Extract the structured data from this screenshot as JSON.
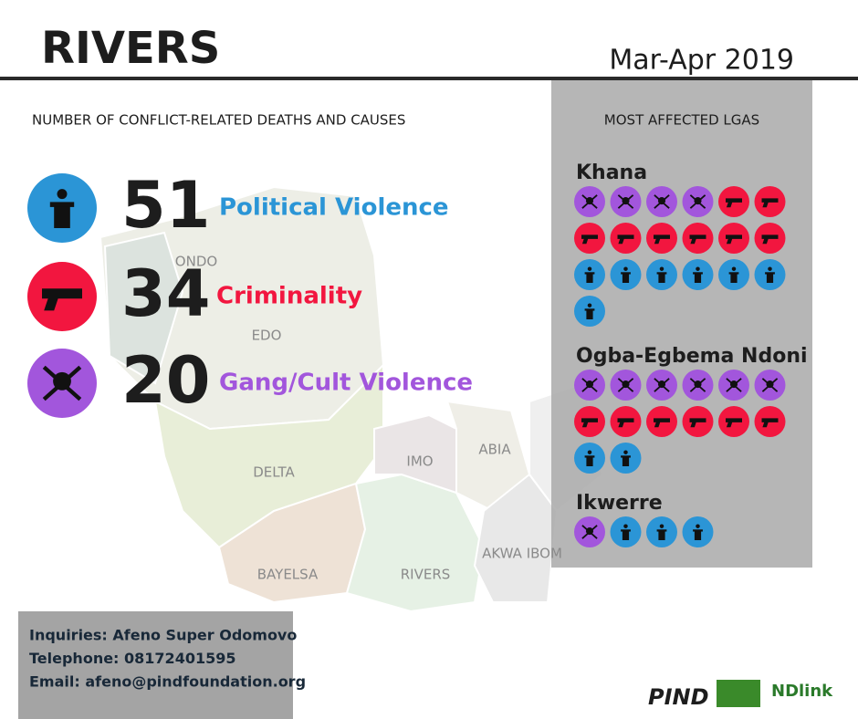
{
  "header": {
    "title": "RIVERS",
    "period": "Mar-Apr 2019"
  },
  "summary": {
    "heading": "NUMBER OF CONFLICT-RELATED DEATHS AND CAUSES",
    "causes": [
      {
        "count": 51,
        "label": "Political Violence",
        "color": "#2b95d6"
      },
      {
        "count": 34,
        "label": "Criminality",
        "color": "#f2163f"
      },
      {
        "count": 20,
        "label": "Gang/Cult Violence",
        "color": "#a256dc"
      }
    ]
  },
  "lgas": {
    "heading": "MOST AFFECTED LGAS",
    "items": [
      {
        "name": "Khana",
        "counts": [
          7,
          8,
          4
        ]
      },
      {
        "name": "Ogba-Egbema Ndoni",
        "counts": [
          2,
          6,
          6
        ]
      },
      {
        "name": "Ikwerre",
        "counts": [
          3,
          0,
          1
        ]
      }
    ]
  },
  "map_labels": [
    "ONDO",
    "EDO",
    "DELTA",
    "IMO",
    "ABIA",
    "BAYELSA",
    "RIVERS",
    "AKWA IBOM"
  ],
  "contact": [
    "Inquiries: Afeno Super Odomovo",
    "Telephone: 08172401595",
    "Email: afeno@pindfoundation.org"
  ],
  "logos": [
    "PIND",
    "NDlink"
  ]
}
